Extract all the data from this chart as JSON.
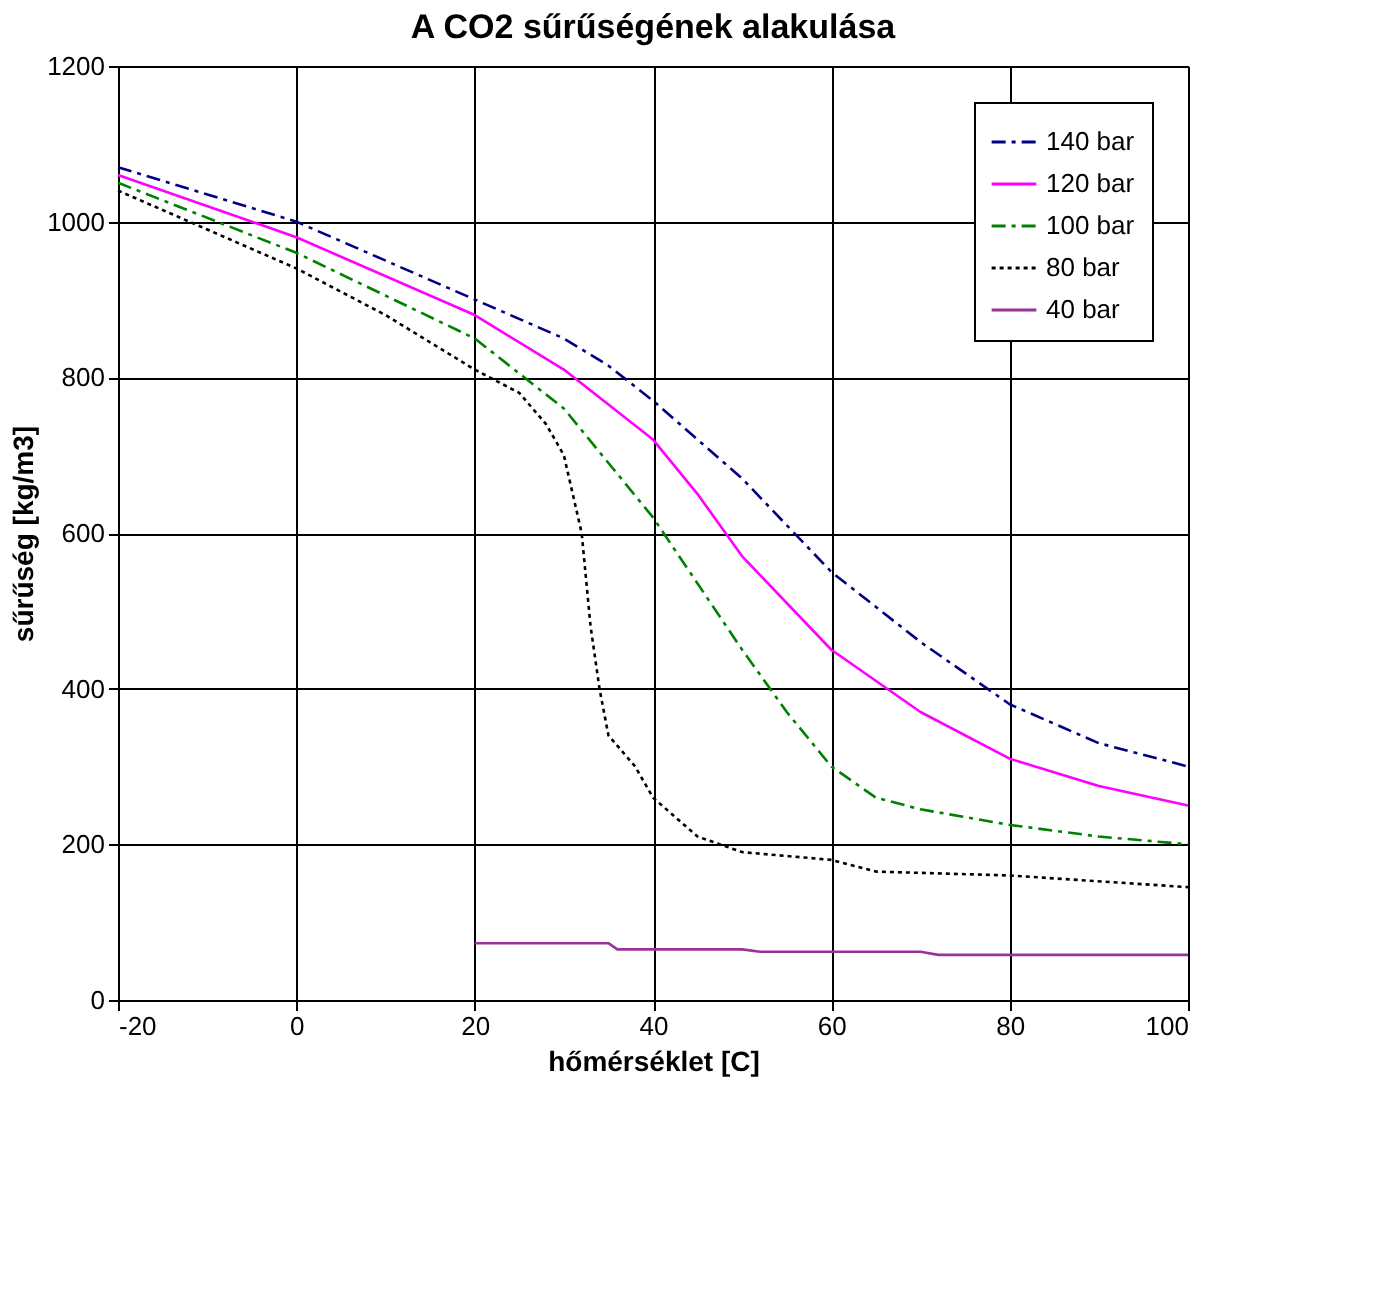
{
  "chart_data": {
    "type": "line",
    "title": "A CO2 sűrűségének alakulása",
    "xlabel": "hőmérséklet [C]",
    "ylabel": "sűrűség [kg/m3]",
    "xlim": [
      -20,
      100
    ],
    "xticks": [
      -20,
      0,
      20,
      40,
      60,
      80,
      100
    ],
    "ylim": [
      0,
      1200
    ],
    "yticks": [
      0,
      200,
      400,
      600,
      800,
      1000,
      1200
    ],
    "grid": true,
    "legend": "top right",
    "marker": "none",
    "series": [
      {
        "name": "140 bar",
        "color": "#000080",
        "line_style": "dashed",
        "x": [
          -20,
          0,
          20,
          30,
          35,
          40,
          50,
          60,
          70,
          80,
          90,
          100
        ],
        "values": [
          1070,
          1000,
          900,
          850,
          815,
          770,
          670,
          550,
          460,
          380,
          330,
          300
        ]
      },
      {
        "name": "120 bar",
        "color": "#ff00ff",
        "line_style": "solid",
        "x": [
          -20,
          0,
          20,
          30,
          40,
          45,
          50,
          60,
          70,
          80,
          90,
          100
        ],
        "values": [
          1060,
          980,
          880,
          810,
          720,
          650,
          570,
          450,
          370,
          310,
          275,
          250
        ]
      },
      {
        "name": "100 bar",
        "color": "#008000",
        "line_style": "dashed",
        "x": [
          -20,
          0,
          20,
          30,
          40,
          50,
          55,
          60,
          65,
          70,
          80,
          90,
          100
        ],
        "values": [
          1050,
          960,
          850,
          760,
          620,
          450,
          370,
          300,
          260,
          245,
          225,
          210,
          200
        ]
      },
      {
        "name": "80 bar",
        "color": "#000000",
        "line_style": "dotted",
        "x": [
          -20,
          0,
          10,
          20,
          25,
          28,
          30,
          32,
          33,
          34,
          35,
          38,
          40,
          45,
          50,
          60,
          65,
          80,
          100
        ],
        "values": [
          1040,
          940,
          880,
          810,
          780,
          740,
          700,
          600,
          480,
          400,
          340,
          300,
          260,
          210,
          190,
          180,
          165,
          160,
          145
        ]
      },
      {
        "name": "40 bar",
        "color": "#993399",
        "line_style": "solid",
        "x": [
          20,
          35,
          36,
          50,
          52,
          70,
          72,
          100
        ],
        "values": [
          73,
          73,
          65,
          65,
          62,
          62,
          58,
          58
        ]
      }
    ]
  }
}
